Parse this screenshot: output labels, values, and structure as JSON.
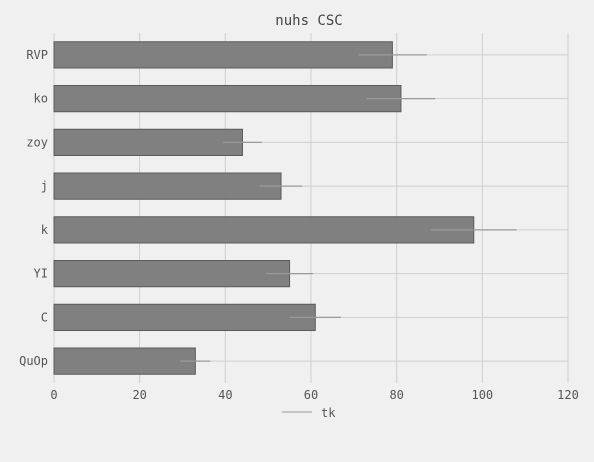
{
  "chart_data": {
    "type": "bar",
    "orientation": "horizontal",
    "title": "nuhs CSC",
    "xlabel": "",
    "ylabel": "",
    "categories": [
      "RVP",
      "ko",
      "zoy",
      "j",
      "k",
      "YI",
      "C",
      "QuOp"
    ],
    "series": [
      {
        "name": "tk",
        "values": [
          79,
          81,
          44,
          53,
          98,
          55,
          61,
          33
        ],
        "errors": [
          8,
          8,
          4.5,
          5,
          10,
          5.5,
          6,
          3.5
        ]
      }
    ],
    "xlim": [
      0,
      120
    ],
    "x_ticks": [
      0,
      20,
      40,
      60,
      80,
      100,
      120
    ],
    "grid": true,
    "legend_position": "bottom-center",
    "colors": {
      "bar": "#808080",
      "bar_edge": "#5a5a5a",
      "error": "#9a9a9a",
      "grid": "#cfcfcf",
      "background": "#f0f0f0"
    }
  }
}
